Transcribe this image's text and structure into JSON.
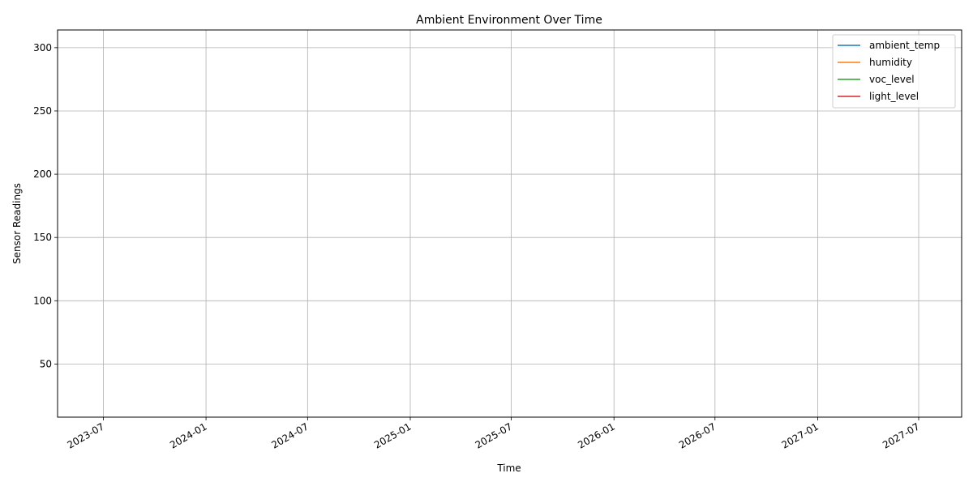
{
  "chart_data": {
    "type": "line",
    "title": "Ambient Environment Over Time",
    "xlabel": "Time",
    "ylabel": "Sensor Readings",
    "xlim": [
      "2023-04-10",
      "2027-09-16"
    ],
    "ylim": [
      8,
      314
    ],
    "x_ticks": [
      {
        "date": "2023-07-01",
        "label": "2023-07"
      },
      {
        "date": "2024-01-01",
        "label": "2024-01"
      },
      {
        "date": "2024-07-01",
        "label": "2024-07"
      },
      {
        "date": "2025-01-01",
        "label": "2025-01"
      },
      {
        "date": "2025-07-01",
        "label": "2025-07"
      },
      {
        "date": "2026-01-01",
        "label": "2026-01"
      },
      {
        "date": "2026-07-01",
        "label": "2026-07"
      },
      {
        "date": "2027-01-01",
        "label": "2027-01"
      },
      {
        "date": "2027-07-01",
        "label": "2027-07"
      }
    ],
    "y_ticks": [
      50,
      100,
      150,
      200,
      250,
      300
    ],
    "grid": true,
    "legend_position": "top-right",
    "series": [
      {
        "name": "ambient_temp",
        "color": "#1f77b4",
        "x": [],
        "values": []
      },
      {
        "name": "humidity",
        "color": "#ff7f0e",
        "x": [],
        "values": []
      },
      {
        "name": "voc_level",
        "color": "#2ca02c",
        "x": [],
        "values": []
      },
      {
        "name": "light_level",
        "color": "#d62728",
        "x": [],
        "values": []
      }
    ]
  }
}
